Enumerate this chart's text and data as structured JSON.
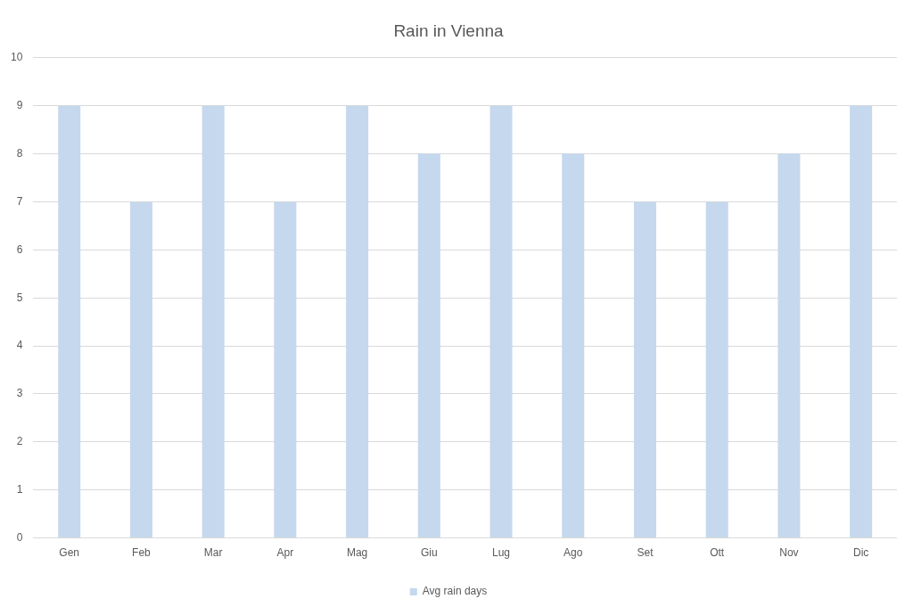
{
  "chart_data": {
    "type": "bar",
    "title": "Rain in Vienna",
    "categories": [
      "Gen",
      "Feb",
      "Mar",
      "Apr",
      "Mag",
      "Giu",
      "Lug",
      "Ago",
      "Set",
      "Ott",
      "Nov",
      "Dic"
    ],
    "series": [
      {
        "name": "Avg rain days",
        "color": "#c5d8ed",
        "values": [
          9,
          7,
          9,
          7,
          9,
          8,
          9,
          8,
          7,
          7,
          8,
          9
        ]
      }
    ],
    "ylim": [
      0,
      10
    ],
    "yticks": [
      0,
      1,
      2,
      3,
      4,
      5,
      6,
      7,
      8,
      9,
      10
    ],
    "grid": "y",
    "legend": "bottom"
  }
}
